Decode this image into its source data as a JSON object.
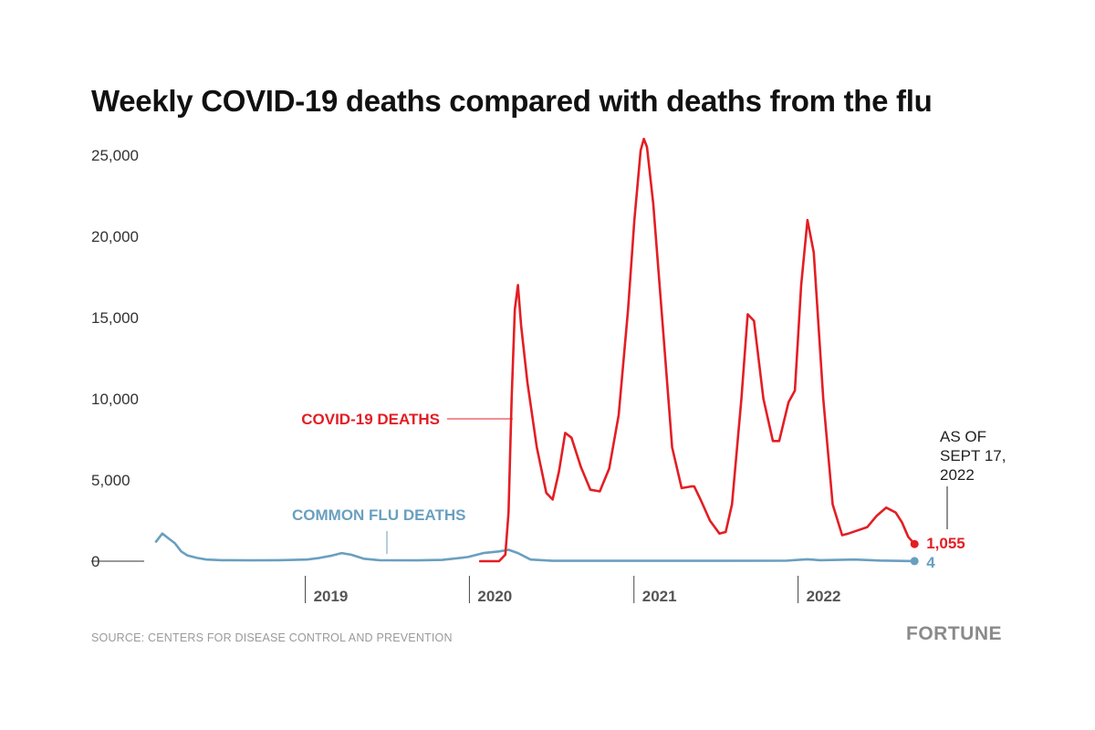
{
  "chart_data": {
    "type": "line",
    "title": "Weekly COVID-19 deaths compared with deaths from the flu",
    "ylim": [
      0,
      25000
    ],
    "yticks": [
      {
        "value": 0,
        "label": "0"
      },
      {
        "value": 5000,
        "label": "5,000"
      },
      {
        "value": 10000,
        "label": "10,000"
      },
      {
        "value": 15000,
        "label": "15,000"
      },
      {
        "value": 20000,
        "label": "20,000"
      },
      {
        "value": 25000,
        "label": "25,000"
      }
    ],
    "xlim": [
      "2018-02-01",
      "2022-10-15"
    ],
    "xticks": [
      {
        "date": "2019-01-01",
        "label": "2019"
      },
      {
        "date": "2020-01-01",
        "label": "2020"
      },
      {
        "date": "2021-01-01",
        "label": "2021"
      },
      {
        "date": "2022-01-01",
        "label": "2022"
      }
    ],
    "grid": false,
    "series": [
      {
        "key": "covid",
        "name": "COVID-19 DEATHS",
        "color": "#e31e24",
        "points": [
          [
            "2020-01-25",
            0
          ],
          [
            "2020-03-07",
            0
          ],
          [
            "2020-03-21",
            400
          ],
          [
            "2020-03-28",
            3000
          ],
          [
            "2020-04-04",
            10000
          ],
          [
            "2020-04-11",
            15500
          ],
          [
            "2020-04-18",
            17000
          ],
          [
            "2020-04-25",
            14500
          ],
          [
            "2020-05-09",
            11000
          ],
          [
            "2020-05-30",
            7000
          ],
          [
            "2020-06-20",
            4200
          ],
          [
            "2020-07-04",
            3800
          ],
          [
            "2020-07-18",
            5500
          ],
          [
            "2020-08-01",
            7900
          ],
          [
            "2020-08-15",
            7600
          ],
          [
            "2020-09-05",
            5800
          ],
          [
            "2020-09-26",
            4400
          ],
          [
            "2020-10-17",
            4300
          ],
          [
            "2020-11-07",
            5700
          ],
          [
            "2020-11-28",
            9000
          ],
          [
            "2020-12-19",
            15500
          ],
          [
            "2021-01-02",
            21000
          ],
          [
            "2021-01-16",
            25300
          ],
          [
            "2021-01-23",
            26000
          ],
          [
            "2021-01-30",
            25500
          ],
          [
            "2021-02-13",
            22000
          ],
          [
            "2021-03-06",
            14500
          ],
          [
            "2021-03-27",
            7000
          ],
          [
            "2021-04-17",
            4500
          ],
          [
            "2021-05-08",
            4600
          ],
          [
            "2021-05-15",
            4600
          ],
          [
            "2021-05-29",
            3800
          ],
          [
            "2021-06-19",
            2500
          ],
          [
            "2021-07-10",
            1700
          ],
          [
            "2021-07-24",
            1800
          ],
          [
            "2021-08-07",
            3500
          ],
          [
            "2021-08-28",
            10000
          ],
          [
            "2021-09-11",
            15200
          ],
          [
            "2021-09-25",
            14800
          ],
          [
            "2021-10-16",
            10000
          ],
          [
            "2021-11-06",
            7400
          ],
          [
            "2021-11-20",
            7400
          ],
          [
            "2021-12-11",
            9800
          ],
          [
            "2021-12-25",
            10500
          ],
          [
            "2022-01-08",
            17000
          ],
          [
            "2022-01-22",
            21000
          ],
          [
            "2022-02-05",
            19000
          ],
          [
            "2022-02-26",
            10000
          ],
          [
            "2022-03-19",
            3500
          ],
          [
            "2022-04-09",
            1600
          ],
          [
            "2022-04-23",
            1700
          ],
          [
            "2022-05-14",
            1900
          ],
          [
            "2022-06-04",
            2100
          ],
          [
            "2022-06-25",
            2800
          ],
          [
            "2022-07-16",
            3300
          ],
          [
            "2022-08-06",
            3000
          ],
          [
            "2022-08-20",
            2400
          ],
          [
            "2022-09-03",
            1500
          ],
          [
            "2022-09-17",
            1055
          ]
        ]
      },
      {
        "key": "flu",
        "name": "COMMON FLU DEATHS",
        "color": "#6a9fc0",
        "points": [
          [
            "2018-02-03",
            1200
          ],
          [
            "2018-02-17",
            1700
          ],
          [
            "2018-03-03",
            1400
          ],
          [
            "2018-03-17",
            1100
          ],
          [
            "2018-03-31",
            600
          ],
          [
            "2018-04-14",
            350
          ],
          [
            "2018-05-05",
            200
          ],
          [
            "2018-05-26",
            100
          ],
          [
            "2018-06-30",
            60
          ],
          [
            "2018-09-01",
            50
          ],
          [
            "2018-11-03",
            60
          ],
          [
            "2019-01-05",
            100
          ],
          [
            "2019-02-02",
            200
          ],
          [
            "2019-03-02",
            350
          ],
          [
            "2019-03-23",
            500
          ],
          [
            "2019-04-13",
            400
          ],
          [
            "2019-05-11",
            150
          ],
          [
            "2019-06-15",
            60
          ],
          [
            "2019-09-07",
            50
          ],
          [
            "2019-11-02",
            80
          ],
          [
            "2019-12-28",
            250
          ],
          [
            "2020-02-01",
            500
          ],
          [
            "2020-03-07",
            600
          ],
          [
            "2020-03-28",
            700
          ],
          [
            "2020-04-18",
            500
          ],
          [
            "2020-05-16",
            100
          ],
          [
            "2020-07-04",
            20
          ],
          [
            "2021-01-02",
            20
          ],
          [
            "2021-07-03",
            20
          ],
          [
            "2021-12-04",
            30
          ],
          [
            "2022-01-01",
            80
          ],
          [
            "2022-01-22",
            120
          ],
          [
            "2022-02-19",
            60
          ],
          [
            "2022-05-07",
            100
          ],
          [
            "2022-07-02",
            40
          ],
          [
            "2022-09-17",
            4
          ]
        ]
      }
    ],
    "annotations": [
      {
        "key": "covid",
        "label": "COVID-19 DEATHS"
      },
      {
        "key": "flu",
        "label": "COMMON FLU DEATHS"
      },
      {
        "key": "asof",
        "lines": [
          "AS OF",
          "SEPT 17,",
          "2022"
        ]
      }
    ],
    "end_values": [
      {
        "series": "covid",
        "label": "1,055"
      },
      {
        "series": "flu",
        "label": "4"
      }
    ]
  },
  "footer": {
    "source": "SOURCE: CENTERS FOR DISEASE CONTROL AND PREVENTION",
    "brand": "FORTUNE"
  }
}
